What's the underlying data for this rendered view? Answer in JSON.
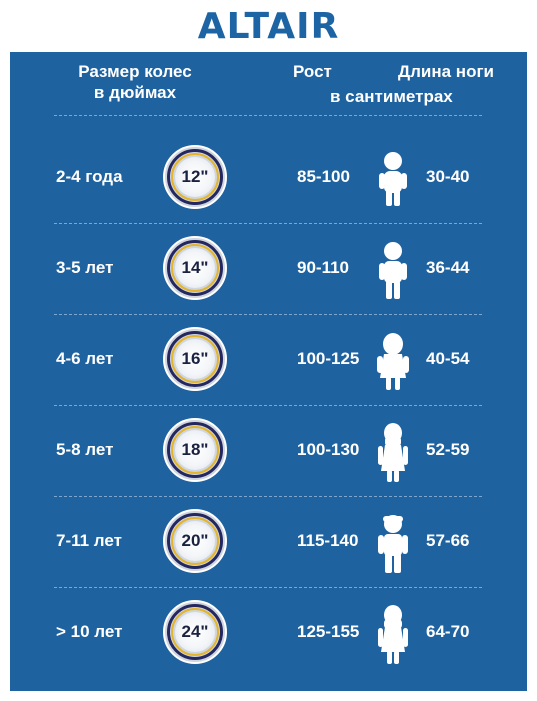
{
  "brand": {
    "logo": "ALTAIR"
  },
  "header": {
    "wheel_size": "Размер колес\nв дюймах",
    "height": "Рост",
    "leg_length": "Длина ноги",
    "units": "в сантиметрах"
  },
  "rows": [
    {
      "age": "2-4 года",
      "wheel": "12\"",
      "height": "85-100",
      "leg": "30-40",
      "figure": "toddler-icon"
    },
    {
      "age": "3-5 лет",
      "wheel": "14\"",
      "height": "90-110",
      "leg": "36-44",
      "figure": "child-icon"
    },
    {
      "age": "4-6 лет",
      "wheel": "16\"",
      "height": "100-125",
      "leg": "40-54",
      "figure": "girl-icon"
    },
    {
      "age": "5-8 лет",
      "wheel": "18\"",
      "height": "100-130",
      "leg": "52-59",
      "figure": "girl-dress-icon"
    },
    {
      "age": "7-11 лет",
      "wheel": "20\"",
      "height": "115-140",
      "leg": "57-66",
      "figure": "boy-icon"
    },
    {
      "age": "> 10 лет",
      "wheel": "24\"",
      "height": "125-155",
      "leg": "64-70",
      "figure": "teen-girl-icon"
    }
  ],
  "colors": {
    "panel": "#1f62a0",
    "logo": "#1d64a4",
    "text": "#ffffff",
    "wheel_tire": "#25285f",
    "wheel_rim": "#e4b52a"
  }
}
